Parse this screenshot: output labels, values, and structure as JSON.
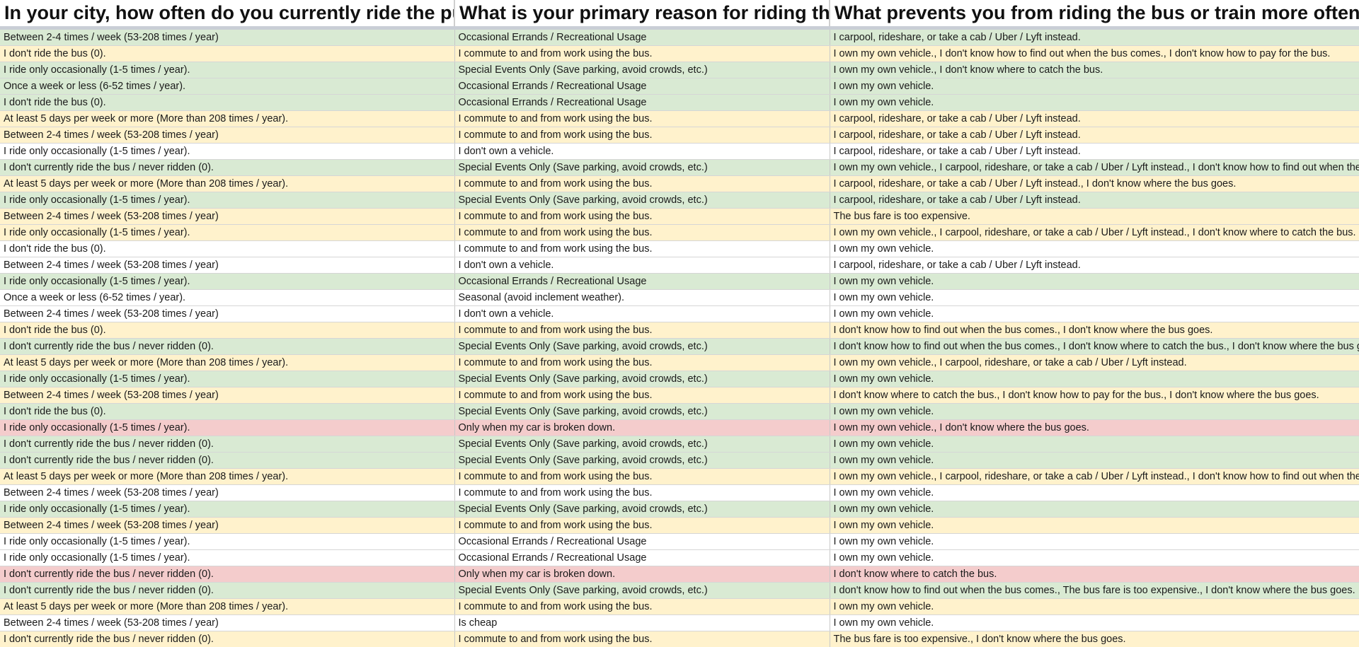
{
  "sheet": {
    "headers": [
      "In your city, how often do you currently ride the pub",
      "What is your primary reason for riding the",
      "What prevents you from riding the bus or train more often? ("
    ],
    "colors": {
      "green": "#d9ead3",
      "yellow": "#fff2cc",
      "red": "#f4cccc",
      "white": "#ffffff"
    },
    "rows": [
      {
        "color": "green",
        "cells": [
          "Between 2-4 times / week (53-208 times / year)",
          "Occasional Errands / Recreational Usage",
          "I carpool, rideshare, or take a cab / Uber / Lyft instead."
        ]
      },
      {
        "color": "yellow",
        "cells": [
          "I don't ride the bus (0).",
          "I commute to and from work using the bus.",
          "I own my own vehicle., I don't know how to find out when the bus comes., I don't know how to pay for the bus."
        ]
      },
      {
        "color": "green",
        "cells": [
          "I ride only occasionally (1-5 times / year).",
          "Special Events Only (Save parking, avoid crowds, etc.)",
          "I own my own vehicle., I don't know where to catch the bus."
        ]
      },
      {
        "color": "green",
        "cells": [
          "Once a week or less (6-52 times / year).",
          "Occasional Errands / Recreational Usage",
          "I own my own vehicle."
        ]
      },
      {
        "color": "green",
        "cells": [
          "I don't ride the bus (0).",
          "Occasional Errands / Recreational Usage",
          "I own my own vehicle."
        ]
      },
      {
        "color": "yellow",
        "cells": [
          "At least 5 days per week or more (More than 208 times / year).",
          "I commute to and from work using the bus.",
          "I carpool, rideshare, or take a cab / Uber / Lyft instead."
        ]
      },
      {
        "color": "yellow",
        "cells": [
          "Between 2-4 times / week (53-208 times / year)",
          "I commute to and from work using the bus.",
          "I carpool, rideshare, or take a cab / Uber / Lyft instead."
        ]
      },
      {
        "color": "white",
        "cells": [
          "I ride only occasionally (1-5 times / year).",
          "I don't own a vehicle.",
          "I carpool, rideshare, or take a cab / Uber / Lyft instead."
        ]
      },
      {
        "color": "green",
        "cells": [
          "I don't currently ride the bus / never ridden (0).",
          "Special Events Only (Save parking, avoid crowds, etc.)",
          "I own my own vehicle., I carpool, rideshare, or take a cab / Uber / Lyft instead., I don't know how to find out when the"
        ]
      },
      {
        "color": "yellow",
        "cells": [
          "At least 5 days per week or more (More than 208 times / year).",
          "I commute to and from work using the bus.",
          "I carpool, rideshare, or take a cab / Uber / Lyft instead., I don't know where the bus goes."
        ]
      },
      {
        "color": "green",
        "cells": [
          "I ride only occasionally (1-5 times / year).",
          "Special Events Only (Save parking, avoid crowds, etc.)",
          "I carpool, rideshare, or take a cab / Uber / Lyft instead."
        ]
      },
      {
        "color": "yellow",
        "cells": [
          "Between 2-4 times / week (53-208 times / year)",
          "I commute to and from work using the bus.",
          "The bus fare is too expensive."
        ]
      },
      {
        "color": "yellow",
        "cells": [
          "I ride only occasionally (1-5 times / year).",
          "I commute to and from work using the bus.",
          "I own my own vehicle., I carpool, rideshare, or take a cab / Uber / Lyft instead., I don't know where to catch the bus."
        ]
      },
      {
        "color": "white",
        "cells": [
          "I don't ride the bus (0).",
          "I commute to and from work using the bus.",
          "I own my own vehicle."
        ]
      },
      {
        "color": "white",
        "cells": [
          "Between 2-4 times / week (53-208 times / year)",
          "I don't own a vehicle.",
          "I carpool, rideshare, or take a cab / Uber / Lyft instead."
        ]
      },
      {
        "color": "green",
        "cells": [
          "I ride only occasionally (1-5 times / year).",
          "Occasional Errands / Recreational Usage",
          "I own my own vehicle."
        ]
      },
      {
        "color": "white",
        "cells": [
          "Once a week or less (6-52 times / year).",
          "Seasonal (avoid inclement weather).",
          "I own my own vehicle."
        ]
      },
      {
        "color": "white",
        "cells": [
          "Between 2-4 times / week (53-208 times / year)",
          "I don't own a vehicle.",
          "I own my own vehicle."
        ]
      },
      {
        "color": "yellow",
        "cells": [
          "I don't ride the bus (0).",
          "I commute to and from work using the bus.",
          "I don't know how to find out when the bus comes., I don't know where the bus goes."
        ]
      },
      {
        "color": "green",
        "cells": [
          "I don't currently ride the bus / never ridden (0).",
          "Special Events Only (Save parking, avoid crowds, etc.)",
          "I don't know how to find out when the bus comes., I don't know where to catch the bus., I don't know where the bus goes."
        ]
      },
      {
        "color": "yellow",
        "cells": [
          "At least 5 days per week or more (More than 208 times / year).",
          "I commute to and from work using the bus.",
          "I own my own vehicle., I carpool, rideshare, or take a cab / Uber / Lyft instead."
        ]
      },
      {
        "color": "green",
        "cells": [
          "I ride only occasionally (1-5 times / year).",
          "Special Events Only (Save parking, avoid crowds, etc.)",
          "I own my own vehicle."
        ]
      },
      {
        "color": "yellow",
        "cells": [
          "Between 2-4 times / week (53-208 times / year)",
          "I commute to and from work using the bus.",
          "I don't know where to catch the bus., I don't know how to pay for the bus., I don't know where the bus goes."
        ]
      },
      {
        "color": "green",
        "cells": [
          "I don't ride the bus (0).",
          "Special Events Only (Save parking, avoid crowds, etc.)",
          "I own my own vehicle."
        ]
      },
      {
        "color": "red",
        "cells": [
          "I ride only occasionally (1-5 times / year).",
          "Only when my car is broken down.",
          "I own my own vehicle., I don't know where the bus goes."
        ]
      },
      {
        "color": "green",
        "cells": [
          "I don't currently ride the bus / never ridden (0).",
          "Special Events Only (Save parking, avoid crowds, etc.)",
          "I own my own vehicle."
        ]
      },
      {
        "color": "green",
        "cells": [
          "I don't currently ride the bus / never ridden (0).",
          "Special Events Only (Save parking, avoid crowds, etc.)",
          "I own my own vehicle."
        ]
      },
      {
        "color": "yellow",
        "cells": [
          "At least 5 days per week or more (More than 208 times / year).",
          "I commute to and from work using the bus.",
          "I own my own vehicle., I carpool, rideshare, or take a cab / Uber / Lyft instead., I don't know how to find out when the"
        ]
      },
      {
        "color": "white",
        "cells": [
          "Between 2-4 times / week (53-208 times / year)",
          "I commute to and from work using the bus.",
          "I own my own vehicle."
        ]
      },
      {
        "color": "green",
        "cells": [
          "I ride only occasionally (1-5 times / year).",
          "Special Events Only (Save parking, avoid crowds, etc.)",
          "I own my own vehicle."
        ]
      },
      {
        "color": "yellow",
        "cells": [
          "Between 2-4 times / week (53-208 times / year)",
          "I commute to and from work using the bus.",
          "I own my own vehicle."
        ]
      },
      {
        "color": "white",
        "cells": [
          "I ride only occasionally (1-5 times / year).",
          "Occasional Errands / Recreational Usage",
          "I own my own vehicle."
        ]
      },
      {
        "color": "white",
        "cells": [
          "I ride only occasionally (1-5 times / year).",
          "Occasional Errands / Recreational Usage",
          "I own my own vehicle."
        ]
      },
      {
        "color": "red",
        "cells": [
          "I don't currently ride the bus / never ridden (0).",
          "Only when my car is broken down.",
          "I don't know where to catch the bus."
        ]
      },
      {
        "color": "green",
        "cells": [
          "I don't currently ride the bus / never ridden (0).",
          "Special Events Only (Save parking, avoid crowds, etc.)",
          "I don't know how to find out when the bus comes., The bus fare is too expensive., I don't know where the bus goes."
        ]
      },
      {
        "color": "yellow",
        "cells": [
          "At least 5 days per week or more (More than 208 times / year).",
          "I commute to and from work using the bus.",
          "I own my own vehicle."
        ]
      },
      {
        "color": "white",
        "cells": [
          "Between 2-4 times / week (53-208 times / year)",
          "Is cheap",
          "I own my own vehicle."
        ]
      },
      {
        "color": "yellow",
        "cells": [
          "I don't currently ride the bus / never ridden (0).",
          "I commute to and from work using the bus.",
          "The bus fare is too expensive., I don't know where the bus goes."
        ]
      }
    ]
  }
}
